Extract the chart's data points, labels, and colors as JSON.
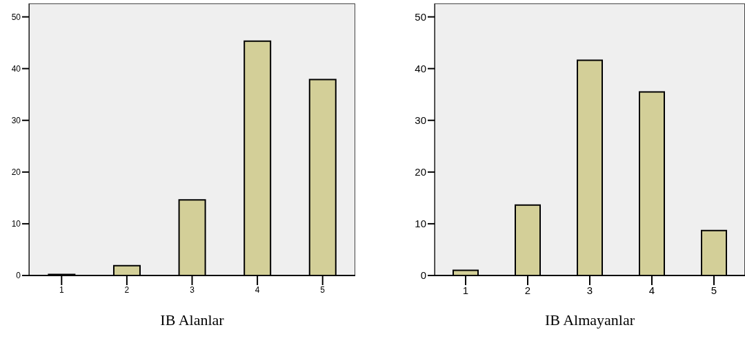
{
  "chart_data": [
    {
      "type": "bar",
      "xlabel": "IB Alanlar",
      "categories": [
        "1",
        "2",
        "3",
        "4",
        "5"
      ],
      "values": [
        0.2,
        1.9,
        14.6,
        45.3,
        37.9
      ],
      "color": "#d3cf98",
      "ylim": [
        0,
        52.6
      ],
      "yticks": [
        0,
        10,
        20,
        30,
        40,
        50
      ],
      "grid": false
    },
    {
      "type": "bar",
      "xlabel": "IB Almayanlar",
      "categories": [
        "1",
        "2",
        "3",
        "4",
        "5"
      ],
      "values": [
        1.0,
        13.6,
        41.6,
        35.5,
        8.7
      ],
      "color": "#d3cf98",
      "ylim": [
        0,
        52.6
      ],
      "yticks": [
        0,
        10,
        20,
        30,
        40,
        50
      ],
      "grid": false
    }
  ]
}
